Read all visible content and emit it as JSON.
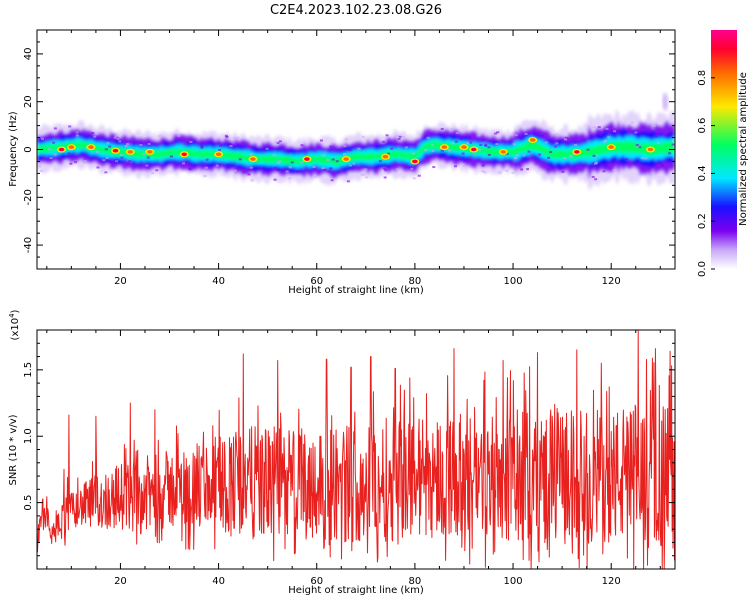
{
  "figure_title": "C2E4.2023.102.23.08.G26",
  "colors": {
    "snr_line": "#e8201e",
    "colormap": [
      "#ffffff",
      "#c8a8f8",
      "#7a00f0",
      "#1a10ff",
      "#00e8ff",
      "#00ff60",
      "#ffe800",
      "#ff6a00",
      "#ff0030",
      "#ff0090"
    ]
  },
  "chart_data": [
    {
      "type": "heatmap",
      "xlabel": "Height of straight line (km)",
      "ylabel": "Frequency (Hz)",
      "xlim": [
        3,
        133
      ],
      "ylim": [
        -50,
        50
      ],
      "xticks": [
        20,
        40,
        60,
        80,
        100,
        120
      ],
      "yticks": [
        -40,
        -20,
        0,
        20,
        40
      ],
      "colorbar": {
        "label": "Normalized spectral amplitude",
        "range": [
          0,
          1
        ],
        "ticks": [
          "0.0",
          "0.2",
          "0.4",
          "0.6",
          "0.8"
        ],
        "tick_values": [
          0,
          0.2,
          0.4,
          0.6,
          0.8
        ]
      },
      "ridge": {
        "description_units": "Hz versus km",
        "x": [
          3,
          8,
          12,
          16,
          20,
          24,
          28,
          32,
          36,
          40,
          44,
          48,
          52,
          56,
          60,
          64,
          68,
          72,
          76,
          80,
          82,
          84,
          88,
          92,
          96,
          100,
          104,
          106,
          108,
          112,
          116,
          120,
          124,
          128,
          133
        ],
        "y": [
          0,
          1,
          2,
          0,
          -1,
          -2,
          -2,
          -1,
          -2,
          -2,
          -3,
          -4,
          -4,
          -5,
          -4,
          -5,
          -3,
          -3,
          -2,
          -3,
          1,
          2,
          1,
          0,
          -1,
          -1,
          2,
          0,
          -2,
          -2,
          -1,
          1,
          1,
          0,
          1
        ]
      },
      "hotspots": [
        {
          "x": 8,
          "y": 0
        },
        {
          "x": 10,
          "y": 1
        },
        {
          "x": 14,
          "y": 1
        },
        {
          "x": 19,
          "y": -0.5
        },
        {
          "x": 22,
          "y": -1
        },
        {
          "x": 26,
          "y": -1
        },
        {
          "x": 33,
          "y": -2
        },
        {
          "x": 40,
          "y": -2
        },
        {
          "x": 47,
          "y": -4
        },
        {
          "x": 58,
          "y": -4
        },
        {
          "x": 66,
          "y": -4
        },
        {
          "x": 74,
          "y": -3
        },
        {
          "x": 80,
          "y": -5
        },
        {
          "x": 86,
          "y": 1
        },
        {
          "x": 90,
          "y": 1
        },
        {
          "x": 92,
          "y": 0
        },
        {
          "x": 98,
          "y": -1
        },
        {
          "x": 104,
          "y": 4
        },
        {
          "x": 113,
          "y": -1
        },
        {
          "x": 120,
          "y": 1
        },
        {
          "x": 128,
          "y": 0
        }
      ],
      "outlier": {
        "x": 131,
        "y": 20
      }
    },
    {
      "type": "line",
      "xlabel": "Height of straight line (km)",
      "ylabel": "SNR (10 * v/v)",
      "y_multiplier": "(x10",
      "y_multiplier_exp": "4",
      "y_multiplier_close": ")",
      "xlim": [
        3,
        133
      ],
      "ylim": [
        0,
        18000
      ],
      "xticks": [
        20,
        40,
        60,
        80,
        100,
        120
      ],
      "yticks": [
        5000,
        10000,
        15000
      ],
      "ytick_labels": [
        "0.5",
        "1.0",
        "1.5"
      ],
      "n_points": 1300,
      "envelope": {
        "x": [
          3,
          4,
          5,
          6,
          8,
          9,
          10,
          15,
          20,
          25,
          30,
          35,
          40,
          45,
          50,
          60,
          70,
          80,
          90,
          100,
          110,
          120,
          125,
          130,
          133
        ],
        "base": [
          2000,
          4000,
          4500,
          2500,
          3500,
          4500,
          4500,
          5000,
          5500,
          5500,
          6000,
          6000,
          6500,
          6500,
          6500,
          6500,
          6500,
          7000,
          7000,
          7000,
          7000,
          7000,
          7000,
          7000,
          7000
        ],
        "amplitude": [
          800,
          1500,
          1200,
          800,
          1500,
          3500,
          1500,
          2500,
          3000,
          3500,
          3500,
          4000,
          4500,
          5000,
          5000,
          5000,
          5500,
          5500,
          5500,
          6000,
          6000,
          6000,
          6500,
          6500,
          6500
        ]
      },
      "peaks": [
        {
          "x": 9.5,
          "y": 11600
        },
        {
          "x": 15,
          "y": 11500
        },
        {
          "x": 22,
          "y": 12500
        },
        {
          "x": 27,
          "y": 12000
        },
        {
          "x": 45,
          "y": 16200
        },
        {
          "x": 52,
          "y": 15700
        },
        {
          "x": 62,
          "y": 15800
        },
        {
          "x": 67,
          "y": 15200
        },
        {
          "x": 71,
          "y": 16000
        },
        {
          "x": 76,
          "y": 15100
        },
        {
          "x": 88,
          "y": 16600
        },
        {
          "x": 98,
          "y": 15700
        },
        {
          "x": 105,
          "y": 16300
        },
        {
          "x": 113,
          "y": 16500
        },
        {
          "x": 118,
          "y": 15500
        },
        {
          "x": 125.5,
          "y": 18000
        },
        {
          "x": 129,
          "y": 16600
        },
        {
          "x": 132,
          "y": 16400
        }
      ]
    }
  ]
}
